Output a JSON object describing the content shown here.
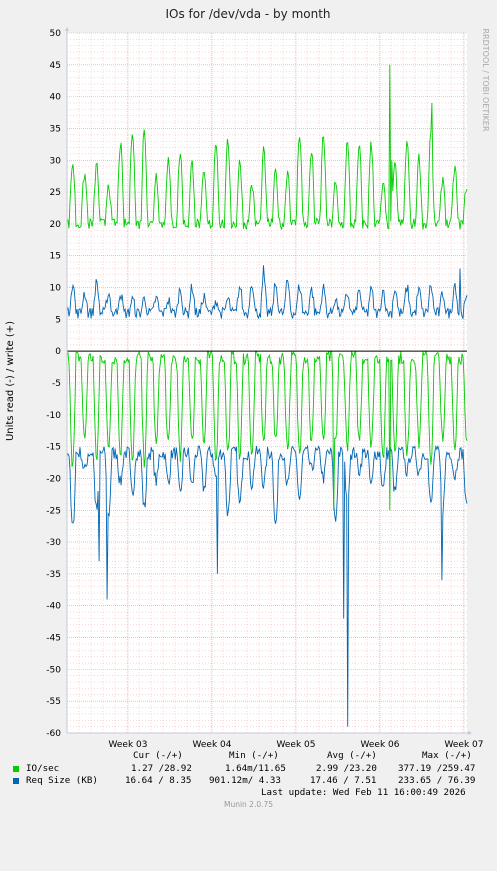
{
  "chart_data": {
    "type": "line",
    "title": "IOs for /dev/vda - by month",
    "ylabel": "Units read (-) / write (+)",
    "ylim": [
      -60,
      50
    ],
    "yticks": [
      50,
      45,
      40,
      35,
      30,
      25,
      20,
      15,
      10,
      5,
      0,
      -5,
      -10,
      -15,
      -20,
      -25,
      -30,
      -35,
      -40,
      -45,
      -50,
      -55,
      -60
    ],
    "xticks": [
      "Week 03",
      "Week 04",
      "Week 05",
      "Week 06",
      "Week 07"
    ],
    "grid": true,
    "side_label": "RRDTOOL / TOBI OETIKER",
    "series": [
      {
        "name": "IO/sec (write)",
        "color": "#00cc00",
        "baseline": 20,
        "peak_range": [
          26,
          35
        ],
        "min": 16,
        "max": 45
      },
      {
        "name": "Req Size (KB) (write)",
        "color": "#0066b3",
        "baseline": 6,
        "peak_range": [
          8,
          11
        ],
        "min": 5,
        "max": 13.5
      },
      {
        "name": "IO/sec (read)",
        "color": "#00cc00",
        "baseline": -1,
        "dip_range": [
          -18,
          -14
        ],
        "min": -25,
        "max": 0
      },
      {
        "name": "Req Size (KB) (read)",
        "color": "#0066b3",
        "baseline": -16,
        "dip_range": [
          -28,
          -18
        ],
        "min": -60,
        "max": -10
      }
    ]
  },
  "legend": {
    "headers": [
      "Cur (-/+)",
      "Min (-/+)",
      "Avg (-/+)",
      "Max (-/+)"
    ],
    "rows": [
      {
        "label": "IO/sec",
        "color": "#00cc00",
        "cur": "1.27 /28.92",
        "min": "1.64m/11.65",
        "avg": "2.99 /23.20",
        "max": "377.19 /259.47"
      },
      {
        "label": "Req Size (KB)",
        "color": "#0066b3",
        "cur": "16.64 / 8.35",
        "min": "901.12m/ 4.33",
        "avg": "17.46 / 7.51",
        "max": "233.65 / 76.39"
      }
    ],
    "last_update": "Last update: Wed Feb 11 16:00:49 2026"
  },
  "footer": "Munin 2.0.75"
}
